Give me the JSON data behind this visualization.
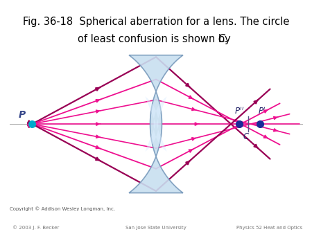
{
  "title_line1": "Fig. 36-18  Spherical aberration for a lens. The circle",
  "title_line2": "of least confusion is shown by ",
  "title_line2_italic": "C.",
  "title_fontsize": 10.5,
  "background_color": "#ffffff",
  "ray_color_magenta": "#EE1090",
  "ray_color_dark": "#990055",
  "lens_color": "#c8dff0",
  "lens_edge_color": "#7799bb",
  "dot_color_P": "#00AACC",
  "dot_color_focal": "#1a2a99",
  "P_x": -3.8,
  "lens_x": 0.0,
  "Pprime_x": 3.2,
  "Pprimeprime_x": 2.55,
  "C_x": 2.82,
  "xlim": [
    -4.5,
    4.5
  ],
  "ylim": [
    -2.2,
    2.2
  ],
  "copyright_text": "Copyright © Addison Wesley Longman, Inc.",
  "footer_left": "© 2003 J. F. Becker",
  "footer_center": "San Jose State University",
  "footer_right": "Physics 52 Heat and Optics"
}
